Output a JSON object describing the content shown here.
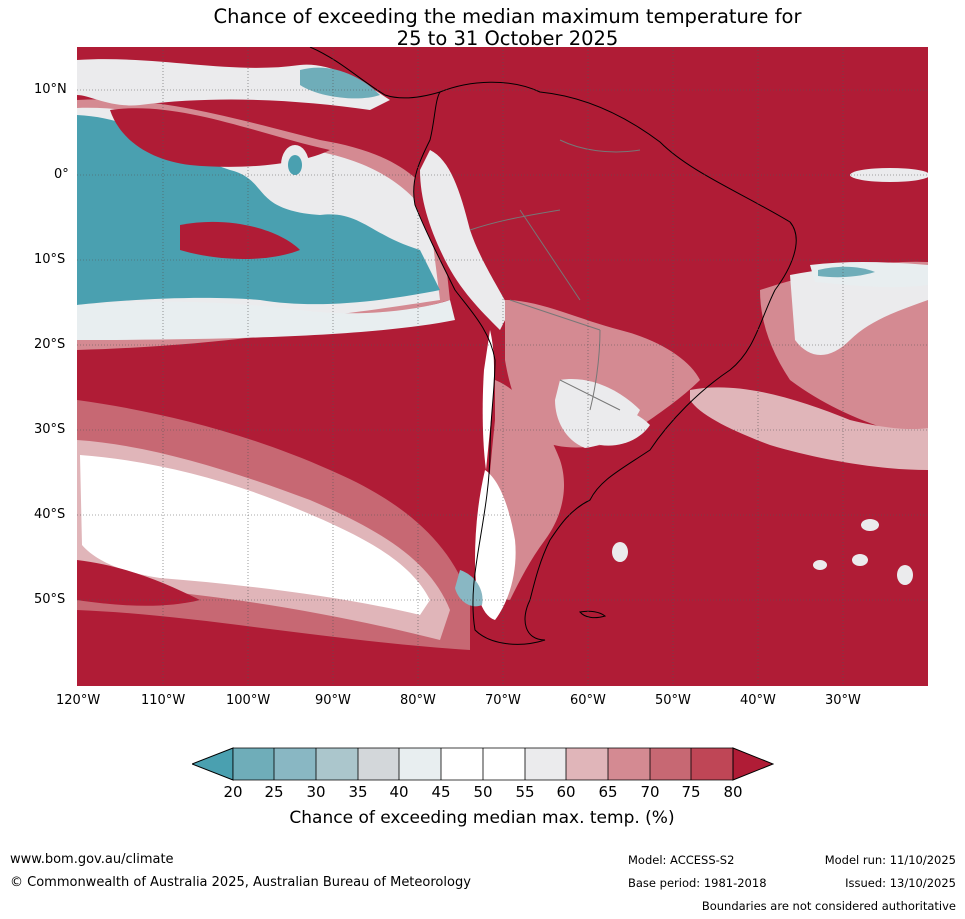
{
  "title": {
    "line1": "Chance of exceeding the median maximum temperature for",
    "line2": "25 to 31 October 2025"
  },
  "map": {
    "region": "South America",
    "lat_range": [
      -60,
      15
    ],
    "lon_range": [
      -120,
      -20
    ],
    "lat_labels": [
      "10°N",
      "0°",
      "10°S",
      "20°S",
      "30°S",
      "40°S",
      "50°S"
    ],
    "lon_labels": [
      "120°W",
      "110°W",
      "100°W",
      "90°W",
      "80°W",
      "70°W",
      "60°W",
      "50°W",
      "40°W",
      "30°W"
    ],
    "palette": {
      "c20": "#4aa0b0",
      "c25": "#6fadb9",
      "c30": "#89b7c3",
      "c35": "#abc6cc",
      "c40": "#d3d7da",
      "c45": "#e8eef0",
      "c50": "#ffffff",
      "c55": "#ffffff",
      "c60": "#ebebed",
      "c65": "#e0b5b9",
      "c70": "#d48a92",
      "c75": "#c76873",
      "c80": "#bf4656",
      "c85": "#b01c36"
    }
  },
  "legend": {
    "ticks": [
      "20",
      "25",
      "30",
      "35",
      "40",
      "45",
      "50",
      "55",
      "60",
      "65",
      "70",
      "75",
      "80"
    ],
    "label": "Chance of exceeding median max. temp. (%)"
  },
  "footer": {
    "website": "www.bom.gov.au/climate",
    "copyright": "© Commonwealth of Australia 2025, Australian Bureau of Meteorology",
    "model": "Model: ACCESS-S2",
    "model_run": "Model run: 11/10/2025",
    "base_period": "Base period: 1981-2018",
    "issued": "Issued: 13/10/2025",
    "disclaimer": "Boundaries are not considered authoritative"
  }
}
